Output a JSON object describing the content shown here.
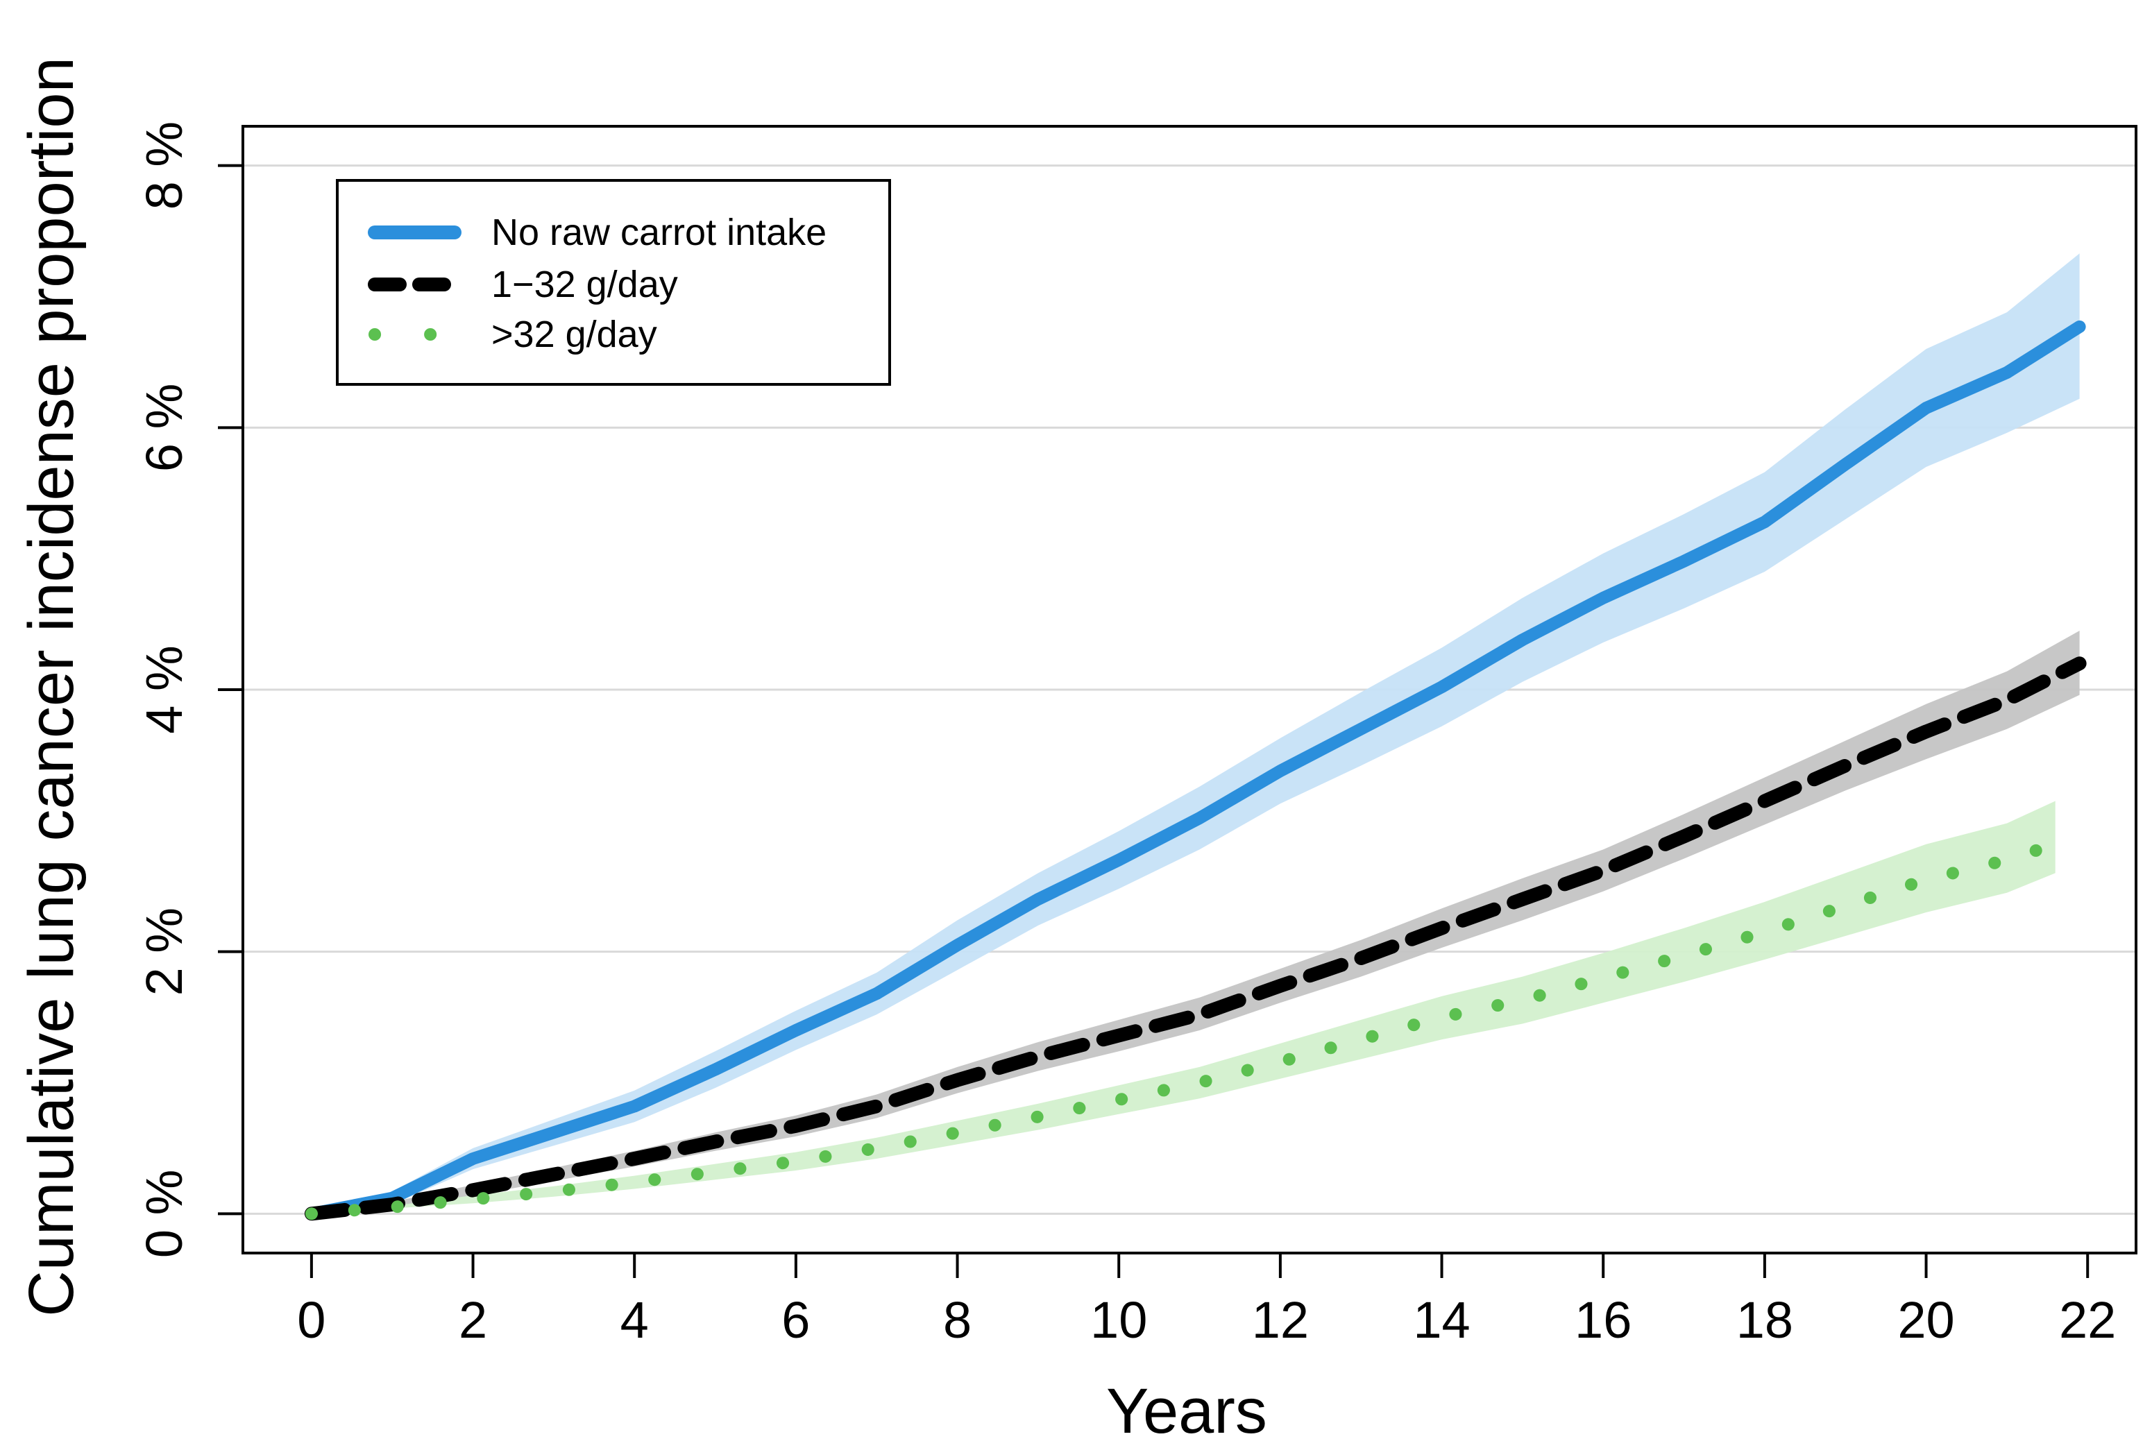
{
  "chart_data": {
    "type": "line",
    "title": "",
    "xlabel": "Years",
    "ylabel": "Cumulative lung cancer incidense proportion",
    "xlim": [
      -0.85,
      22.6
    ],
    "ylim": [
      -0.3,
      8.3
    ],
    "xticks": [
      0,
      2,
      4,
      6,
      8,
      10,
      12,
      14,
      16,
      18,
      20,
      22
    ],
    "xtick_labels": [
      "0",
      "2",
      "4",
      "6",
      "8",
      "10",
      "12",
      "14",
      "16",
      "18",
      "20",
      "22"
    ],
    "yticks": [
      0,
      2,
      4,
      6,
      8
    ],
    "ytick_labels": [
      "0 %",
      "2 %",
      "4 %",
      "6 %",
      "8 %"
    ],
    "grid": "horizontal",
    "legend_position": "top-left",
    "series": [
      {
        "name": "No raw carrot intake",
        "color": "#2b8fdc",
        "band_color": "#c6e2f7",
        "style": "solid",
        "x": [
          0,
          1,
          2,
          3,
          4,
          5,
          6,
          7,
          8,
          9,
          10,
          11,
          12,
          13,
          14,
          15,
          16,
          17,
          18,
          19,
          20,
          21,
          21.9
        ],
        "y": [
          0,
          0.12,
          0.42,
          0.62,
          0.82,
          1.1,
          1.4,
          1.68,
          2.05,
          2.4,
          2.7,
          3.02,
          3.38,
          3.7,
          4.02,
          4.38,
          4.7,
          4.98,
          5.28,
          5.72,
          6.15,
          6.42,
          6.77
        ],
        "lower": [
          0,
          0.07,
          0.34,
          0.52,
          0.7,
          0.96,
          1.25,
          1.52,
          1.86,
          2.2,
          2.48,
          2.78,
          3.13,
          3.42,
          3.72,
          4.06,
          4.36,
          4.62,
          4.9,
          5.3,
          5.7,
          5.96,
          6.22
        ],
        "upper": [
          0,
          0.17,
          0.5,
          0.72,
          0.94,
          1.24,
          1.55,
          1.84,
          2.24,
          2.6,
          2.92,
          3.26,
          3.63,
          3.98,
          4.32,
          4.7,
          5.04,
          5.34,
          5.66,
          6.14,
          6.6,
          6.88,
          7.33
        ]
      },
      {
        "name": "1−32 g/day",
        "color": "#000000",
        "band_color": "#c4c4c4",
        "style": "dashed",
        "x": [
          0,
          1,
          2,
          3,
          4,
          5,
          6,
          7,
          8,
          9,
          10,
          11,
          12,
          13,
          14,
          15,
          16,
          17,
          18,
          19,
          20,
          21,
          21.9
        ],
        "y": [
          0,
          0.07,
          0.18,
          0.3,
          0.42,
          0.55,
          0.67,
          0.82,
          1.02,
          1.2,
          1.36,
          1.52,
          1.74,
          1.95,
          2.18,
          2.4,
          2.62,
          2.88,
          3.15,
          3.42,
          3.68,
          3.92,
          4.2
        ],
        "lower": [
          0,
          0.05,
          0.14,
          0.25,
          0.36,
          0.48,
          0.59,
          0.73,
          0.92,
          1.09,
          1.24,
          1.4,
          1.61,
          1.81,
          2.03,
          2.24,
          2.46,
          2.71,
          2.97,
          3.23,
          3.47,
          3.7,
          3.96
        ],
        "upper": [
          0,
          0.09,
          0.22,
          0.35,
          0.48,
          0.62,
          0.75,
          0.91,
          1.12,
          1.31,
          1.48,
          1.65,
          1.87,
          2.09,
          2.33,
          2.56,
          2.78,
          3.05,
          3.33,
          3.61,
          3.89,
          4.14,
          4.45
        ]
      },
      {
        "name": ">32 g/day",
        "color": "#5cc050",
        "band_color": "#d3f0ce",
        "style": "dotted",
        "x": [
          0,
          1,
          2,
          3,
          4,
          5,
          6,
          7,
          8,
          9,
          10,
          11,
          12,
          13,
          14,
          15,
          16,
          17,
          18,
          19,
          20,
          21,
          21.6
        ],
        "y": [
          0,
          0.05,
          0.11,
          0.17,
          0.24,
          0.32,
          0.4,
          0.5,
          0.62,
          0.74,
          0.87,
          1.0,
          1.16,
          1.33,
          1.5,
          1.63,
          1.8,
          1.97,
          2.15,
          2.35,
          2.55,
          2.7,
          2.82
        ],
        "lower": [
          0,
          0.04,
          0.08,
          0.13,
          0.19,
          0.26,
          0.33,
          0.42,
          0.53,
          0.64,
          0.76,
          0.88,
          1.03,
          1.18,
          1.33,
          1.45,
          1.61,
          1.77,
          1.94,
          2.12,
          2.3,
          2.45,
          2.6
        ],
        "upper": [
          0,
          0.06,
          0.14,
          0.21,
          0.29,
          0.38,
          0.47,
          0.58,
          0.71,
          0.84,
          0.98,
          1.12,
          1.3,
          1.48,
          1.66,
          1.81,
          1.99,
          2.18,
          2.38,
          2.6,
          2.82,
          2.98,
          3.15
        ]
      }
    ]
  }
}
